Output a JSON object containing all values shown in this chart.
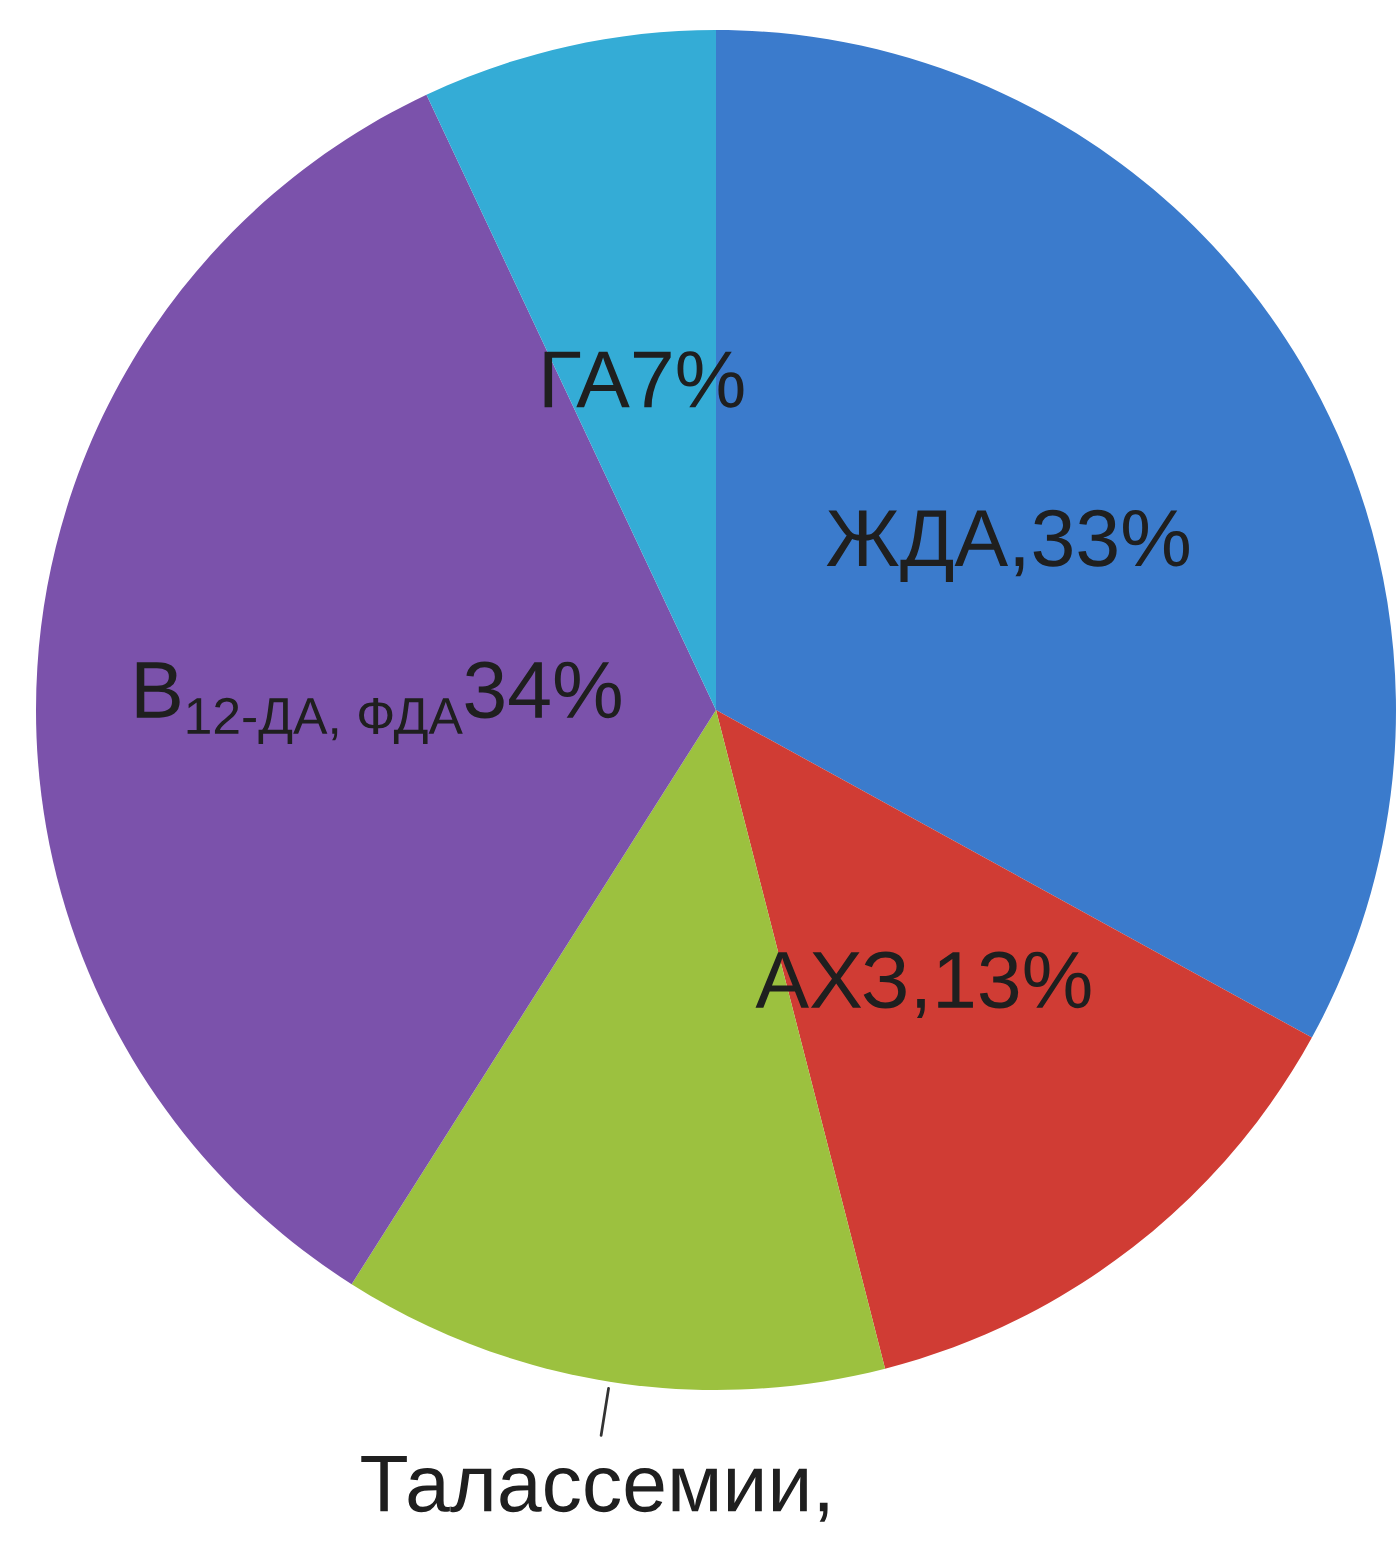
{
  "chart_data": {
    "type": "pie",
    "categories": [
      "ЖДА",
      "АХЗ",
      "Талассемии",
      "B$_{12-ДА, ФДА}$",
      "ГА"
    ],
    "values": [
      33,
      13,
      13,
      34,
      7
    ],
    "colors": [
      "#3b7bcc",
      "#d03c34",
      "#9cc13f",
      "#7b52ab",
      "#34acd6"
    ],
    "value_labels": [
      ",33%",
      ",13%",
      ",",
      "34%",
      "7%"
    ]
  }
}
